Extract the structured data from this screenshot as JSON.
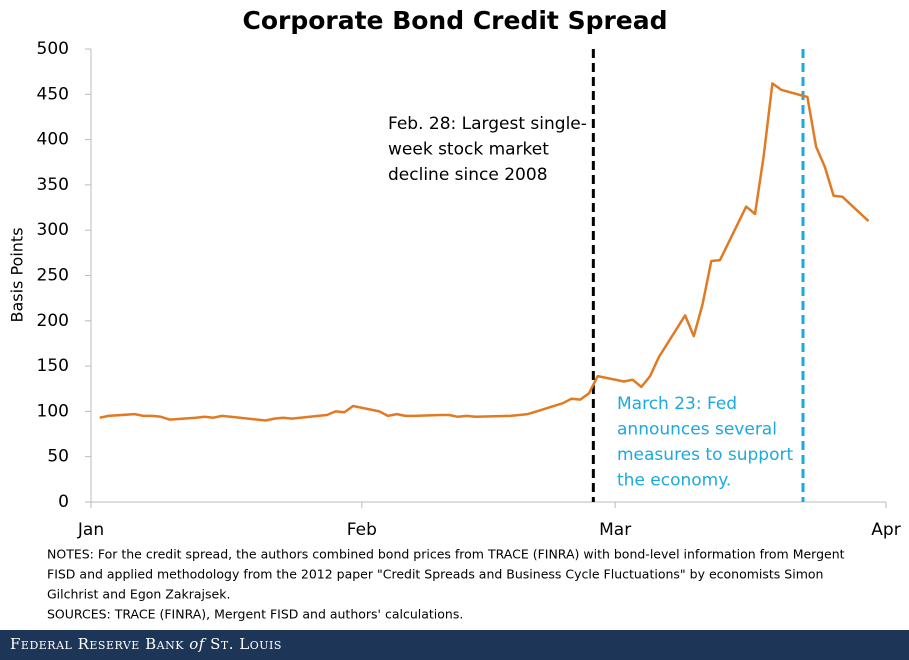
{
  "chart_data": {
    "type": "line",
    "title": "Corporate Bond Credit Spread",
    "y_label": "Basis Points",
    "x": [
      1,
      2,
      5,
      6,
      7,
      8,
      9,
      12,
      13,
      14,
      15,
      16,
      20,
      21,
      22,
      23,
      26,
      27,
      28,
      29,
      30,
      33,
      34,
      35,
      36,
      37,
      40,
      41,
      42,
      43,
      44,
      48,
      49,
      50,
      51,
      54,
      55,
      56,
      57,
      58,
      61,
      62,
      63,
      64,
      65,
      68,
      69,
      70,
      71,
      72,
      75,
      76,
      77,
      78,
      79,
      82,
      83,
      84,
      85,
      86,
      89
    ],
    "series": [
      {
        "name": "Credit spread",
        "color": "#e07b24",
        "values": [
          93,
          95,
          97,
          95,
          95,
          94,
          91,
          93,
          94,
          93,
          95,
          94,
          90,
          92,
          93,
          92,
          95,
          96,
          100,
          99,
          106,
          100,
          95,
          97,
          95,
          95,
          96,
          96,
          94,
          95,
          94,
          95,
          96,
          97,
          100,
          109,
          114,
          113,
          120,
          139,
          133,
          135,
          127,
          139,
          160,
          206,
          183,
          218,
          266,
          267,
          326,
          318,
          382,
          462,
          455,
          447,
          392,
          370,
          338,
          337,
          310
        ]
      }
    ],
    "xlim": [
      0,
      91
    ],
    "xticks": [
      {
        "value": 0,
        "label": "Jan"
      },
      {
        "value": 31,
        "label": "Feb"
      },
      {
        "value": 60,
        "label": "Mar"
      },
      {
        "value": 91,
        "label": "Apr"
      }
    ],
    "ylim": [
      0,
      500
    ],
    "yticks": [
      0,
      50,
      100,
      150,
      200,
      250,
      300,
      350,
      400,
      450,
      500
    ],
    "grid": false,
    "events": [
      {
        "x": 57.5,
        "color": "#000000",
        "lines": [
          "Feb. 28: Largest single-",
          "week stock market",
          "decline since 2008"
        ]
      },
      {
        "x": 81.5,
        "color": "#1ba9de",
        "lines": [
          "March 23: Fed",
          "announces several",
          "measures to support",
          "the economy."
        ]
      }
    ],
    "notes": [
      "NOTES: For the credit spread, the authors combined bond prices from TRACE (FINRA) with bond-level information from Mergent",
      "FISD and applied methodology from the 2012 paper \"Credit Spreads and Business Cycle Fluctuations\" by economists Simon",
      "Gilchrist and Egon Zakrajsek.",
      "SOURCES: TRACE (FINRA), Mergent FISD and authors' calculations."
    ],
    "footer": [
      "Federal Reserve Bank",
      "of",
      "St. Louis"
    ]
  }
}
